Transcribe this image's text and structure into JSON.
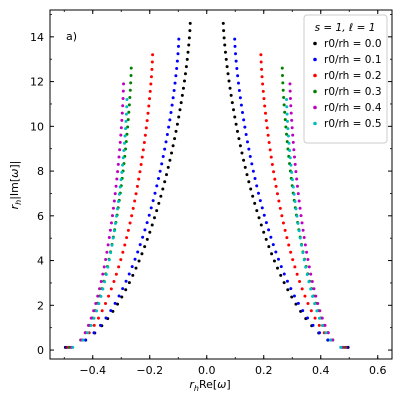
{
  "chart_data": {
    "type": "scatter",
    "panel_label": "a)",
    "xlabel": "r_hRe[ω]",
    "ylabel": "r_h|Im[ω]|",
    "xlim": [
      -0.55,
      0.65
    ],
    "ylim": [
      -0.4,
      15.2
    ],
    "xticks": [
      -0.4,
      -0.2,
      0.0,
      0.2,
      0.4,
      0.6
    ],
    "xtick_labels": [
      "−0.4",
      "−0.2",
      "0.0",
      "0.2",
      "0.4",
      "0.6"
    ],
    "yticks": [
      0,
      2,
      4,
      6,
      8,
      10,
      12,
      14
    ],
    "ytick_labels": [
      "0",
      "2",
      "4",
      "6",
      "8",
      "10",
      "12",
      "14"
    ],
    "grid": false,
    "legend": {
      "title": "s = 1, ℓ = 1",
      "placement": "top-right",
      "entries": [
        "r0/rh = 0.0",
        "r0/rh = 0.1",
        "r0/rh = 0.2",
        "r0/rh = 0.3",
        "r0/rh = 0.4",
        "r0/rh = 0.5"
      ]
    },
    "mirror_symmetric": true,
    "series": [
      {
        "name": "r0/rh = 0.0",
        "color": "#000000",
        "re_start": 0.496,
        "re_end": 0.058,
        "im_max": 14.6,
        "points": 46
      },
      {
        "name": "r0/rh = 0.1",
        "color": "#0000ff",
        "re_start": 0.492,
        "re_end": 0.098,
        "im_max": 13.9,
        "points": 43
      },
      {
        "name": "r0/rh = 0.2",
        "color": "#ff0000",
        "re_start": 0.487,
        "re_end": 0.19,
        "im_max": 13.2,
        "points": 41
      },
      {
        "name": "r0/rh = 0.3",
        "color": "#008000",
        "re_start": 0.481,
        "re_end": 0.265,
        "im_max": 12.6,
        "points": 39
      },
      {
        "name": "r0/rh = 0.4",
        "color": "#bf00bf",
        "re_start": 0.475,
        "re_end": 0.292,
        "im_max": 11.9,
        "points": 37
      },
      {
        "name": "r0/rh = 0.5",
        "color": "#00bfbf",
        "re_start": 0.47,
        "re_end": 0.28,
        "im_max": 11.2,
        "points": 35
      }
    ]
  }
}
